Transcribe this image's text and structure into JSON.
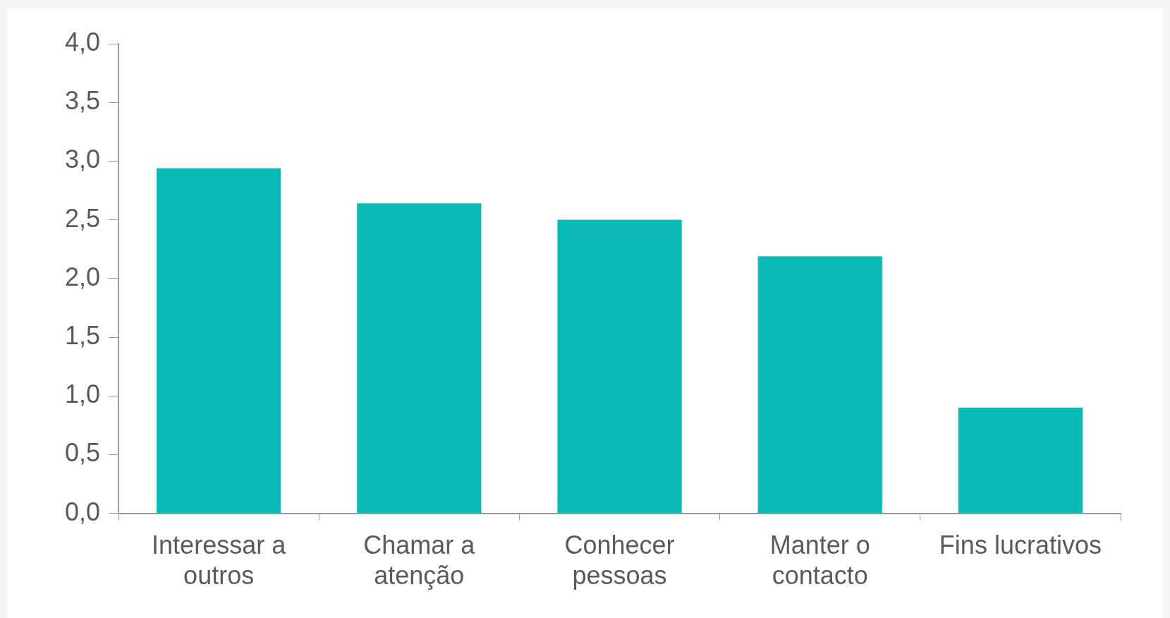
{
  "chart_data": {
    "type": "bar",
    "categories": [
      "Interessar a outros",
      "Chamar a atenção",
      "Conhecer pessoas",
      "Manter o contacto",
      "Fins lucrativos"
    ],
    "values": [
      2.94,
      2.64,
      2.5,
      2.19,
      0.9
    ],
    "color": "#09bab5",
    "ylim": [
      0,
      4
    ],
    "yticks": [
      {
        "value": 0,
        "label": "0,0"
      },
      {
        "value": 0.5,
        "label": "0,5"
      },
      {
        "value": 1,
        "label": "1,0"
      },
      {
        "value": 1.5,
        "label": "1,5"
      },
      {
        "value": 2,
        "label": "2,0"
      },
      {
        "value": 2.5,
        "label": "2,5"
      },
      {
        "value": 3,
        "label": "3,0"
      },
      {
        "value": 3.5,
        "label": "3,5"
      },
      {
        "value": 4,
        "label": "4,0"
      }
    ],
    "grid": false
  }
}
